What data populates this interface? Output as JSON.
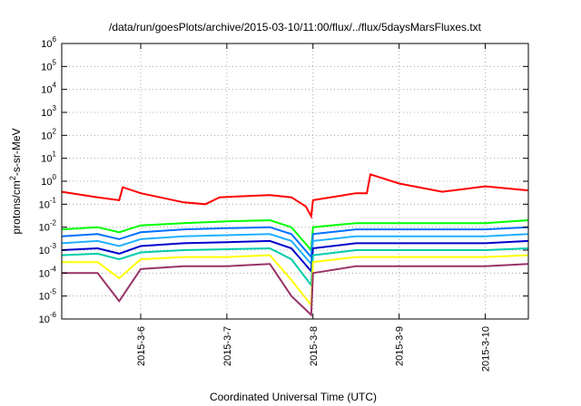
{
  "chart_data": {
    "type": "line",
    "title": "/data/run/goesPlots/archive/2015-03-10/11:00/flux/../flux/5daysMarsFluxes.txt",
    "xlabel": "Coordinated Universal Time (UTC)",
    "ylabel": {
      "base": "protons/cm",
      "sup": "2",
      "rest": "-s-sr-MeV"
    },
    "yscale": "log",
    "ylim": [
      "1e-6",
      "1e6"
    ],
    "xlim": [
      "2015-03-05T02:00",
      "2015-03-10T12:00"
    ],
    "grid": true,
    "legend": "none",
    "x_ticks": [
      "2015-3-6",
      "2015-3-7",
      "2015-3-8",
      "2015-3-9",
      "2015-3-10"
    ],
    "y_ticks": [
      {
        "mantissa": "10",
        "exp": "-6"
      },
      {
        "mantissa": "10",
        "exp": "-5"
      },
      {
        "mantissa": "10",
        "exp": "-4"
      },
      {
        "mantissa": "10",
        "exp": "-3"
      },
      {
        "mantissa": "10",
        "exp": "-2"
      },
      {
        "mantissa": "10",
        "exp": "-1"
      },
      {
        "mantissa": "10",
        "exp": "0"
      },
      {
        "mantissa": "10",
        "exp": "1"
      },
      {
        "mantissa": "10",
        "exp": "2"
      },
      {
        "mantissa": "10",
        "exp": "3"
      },
      {
        "mantissa": "10",
        "exp": "4"
      },
      {
        "mantissa": "10",
        "exp": "5"
      },
      {
        "mantissa": "10",
        "exp": "6"
      }
    ],
    "series": [
      {
        "color": "#ff0000",
        "x": [
          "2015-03-05T02:00",
          "2015-03-05T12:00",
          "2015-03-05T18:00",
          "2015-03-05T19:00",
          "2015-03-06T00:00",
          "2015-03-06T12:00",
          "2015-03-06T18:00",
          "2015-03-06T22:00",
          "2015-03-07T12:00",
          "2015-03-07T18:00",
          "2015-03-07T22:00",
          "2015-03-07T23:30",
          "2015-03-08T00:00",
          "2015-03-08T12:00",
          "2015-03-08T15:00",
          "2015-03-08T16:00",
          "2015-03-09T00:00",
          "2015-03-09T12:00",
          "2015-03-10T00:00",
          "2015-03-10T12:00"
        ],
        "y": [
          0.35,
          0.2,
          0.15,
          0.55,
          0.3,
          0.12,
          0.1,
          0.2,
          0.25,
          0.2,
          0.08,
          0.03,
          0.15,
          0.3,
          0.3,
          2.0,
          0.8,
          0.35,
          0.6,
          0.4
        ]
      },
      {
        "color": "#00ff00",
        "x": [
          "2015-03-05T02:00",
          "2015-03-05T12:00",
          "2015-03-05T18:00",
          "2015-03-06T00:00",
          "2015-03-06T12:00",
          "2015-03-07T00:00",
          "2015-03-07T12:00",
          "2015-03-07T18:00",
          "2015-03-07T23:30",
          "2015-03-08T00:00",
          "2015-03-08T12:00",
          "2015-03-09T00:00",
          "2015-03-09T12:00",
          "2015-03-10T00:00",
          "2015-03-10T12:00"
        ],
        "y": [
          0.008,
          0.01,
          0.006,
          0.012,
          0.015,
          0.018,
          0.02,
          0.01,
          0.001,
          0.01,
          0.015,
          0.015,
          0.015,
          0.015,
          0.02
        ]
      },
      {
        "color": "#0070ff",
        "x": [
          "2015-03-05T02:00",
          "2015-03-05T12:00",
          "2015-03-05T18:00",
          "2015-03-06T00:00",
          "2015-03-06T12:00",
          "2015-03-07T00:00",
          "2015-03-07T12:00",
          "2015-03-07T18:00",
          "2015-03-07T23:30",
          "2015-03-08T00:00",
          "2015-03-08T12:00",
          "2015-03-09T00:00",
          "2015-03-09T12:00",
          "2015-03-10T00:00",
          "2015-03-10T12:00"
        ],
        "y": [
          0.004,
          0.005,
          0.003,
          0.006,
          0.008,
          0.009,
          0.01,
          0.005,
          0.0005,
          0.005,
          0.008,
          0.008,
          0.008,
          0.008,
          0.01
        ]
      },
      {
        "color": "#20b0ff",
        "x": [
          "2015-03-05T02:00",
          "2015-03-05T12:00",
          "2015-03-05T18:00",
          "2015-03-06T00:00",
          "2015-03-06T12:00",
          "2015-03-07T00:00",
          "2015-03-07T12:00",
          "2015-03-07T18:00",
          "2015-03-07T23:30",
          "2015-03-08T00:00",
          "2015-03-08T12:00",
          "2015-03-09T00:00",
          "2015-03-09T12:00",
          "2015-03-10T00:00",
          "2015-03-10T12:00"
        ],
        "y": [
          0.002,
          0.0025,
          0.0015,
          0.003,
          0.004,
          0.0045,
          0.005,
          0.0025,
          0.00025,
          0.0025,
          0.004,
          0.004,
          0.004,
          0.004,
          0.005
        ]
      },
      {
        "color": "#0000cc",
        "x": [
          "2015-03-05T02:00",
          "2015-03-05T12:00",
          "2015-03-05T18:00",
          "2015-03-06T00:00",
          "2015-03-06T12:00",
          "2015-03-07T00:00",
          "2015-03-07T12:00",
          "2015-03-07T18:00",
          "2015-03-07T23:30",
          "2015-03-08T00:00",
          "2015-03-08T12:00",
          "2015-03-09T00:00",
          "2015-03-09T12:00",
          "2015-03-10T00:00",
          "2015-03-10T12:00"
        ],
        "y": [
          0.001,
          0.0012,
          0.0007,
          0.0015,
          0.002,
          0.0022,
          0.0025,
          0.0012,
          0.00012,
          0.0012,
          0.002,
          0.002,
          0.002,
          0.002,
          0.0025
        ]
      },
      {
        "color": "#00ccaa",
        "x": [
          "2015-03-05T02:00",
          "2015-03-05T12:00",
          "2015-03-05T18:00",
          "2015-03-06T00:00",
          "2015-03-06T12:00",
          "2015-03-07T00:00",
          "2015-03-07T12:00",
          "2015-03-07T18:00",
          "2015-03-07T23:30",
          "2015-03-08T00:00",
          "2015-03-08T12:00",
          "2015-03-09T00:00",
          "2015-03-09T12:00",
          "2015-03-10T00:00",
          "2015-03-10T12:00"
        ],
        "y": [
          0.0006,
          0.0007,
          0.0004,
          0.0008,
          0.001,
          0.0011,
          0.0012,
          0.0004,
          3e-05,
          0.0006,
          0.001,
          0.001,
          0.001,
          0.001,
          0.0012
        ]
      },
      {
        "color": "#ffff00",
        "x": [
          "2015-03-05T02:00",
          "2015-03-05T12:00",
          "2015-03-05T18:00",
          "2015-03-06T00:00",
          "2015-03-06T12:00",
          "2015-03-07T00:00",
          "2015-03-07T12:00",
          "2015-03-07T18:00",
          "2015-03-07T23:30",
          "2015-03-08T00:00",
          "2015-03-08T12:00",
          "2015-03-09T00:00",
          "2015-03-09T12:00",
          "2015-03-10T00:00",
          "2015-03-10T12:00"
        ],
        "y": [
          0.0003,
          0.0003,
          6e-05,
          0.0004,
          0.0005,
          0.0005,
          0.0006,
          5e-05,
          4e-06,
          0.0003,
          0.0005,
          0.0005,
          0.0005,
          0.0005,
          0.0006
        ]
      },
      {
        "color": "#993366",
        "x": [
          "2015-03-05T02:00",
          "2015-03-05T12:00",
          "2015-03-05T18:00",
          "2015-03-06T00:00",
          "2015-03-06T12:00",
          "2015-03-07T00:00",
          "2015-03-07T12:00",
          "2015-03-07T18:00",
          "2015-03-07T23:30",
          "2015-03-08T00:00",
          "2015-03-08T12:00",
          "2015-03-09T00:00",
          "2015-03-09T12:00",
          "2015-03-10T00:00",
          "2015-03-10T12:00"
        ],
        "y": [
          0.0001,
          0.0001,
          6e-06,
          0.00015,
          0.0002,
          0.0002,
          0.00025,
          1e-05,
          1.5e-06,
          0.0001,
          0.0002,
          0.0002,
          0.0002,
          0.0002,
          0.00025
        ]
      }
    ]
  }
}
